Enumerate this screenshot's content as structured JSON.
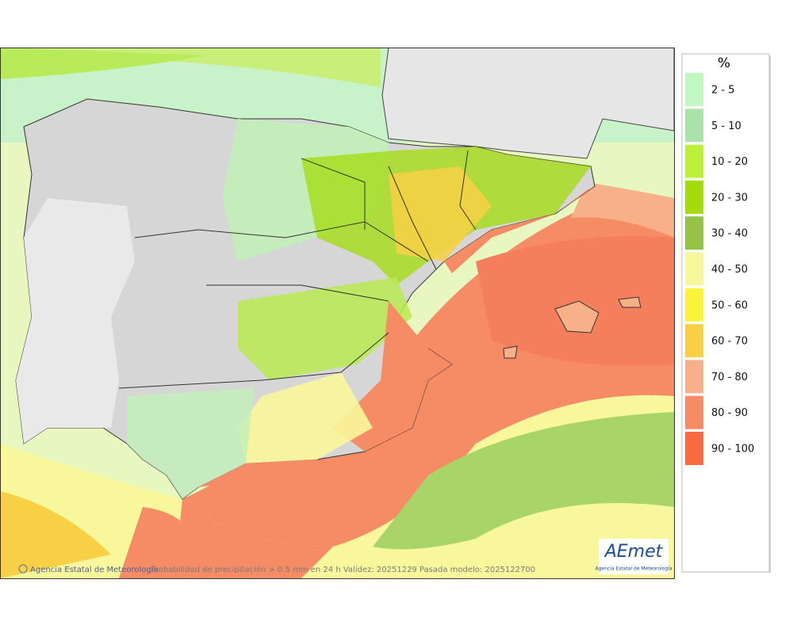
{
  "legend": {
    "title": "%",
    "items": [
      {
        "label": "2 - 5",
        "color": "#c2f7c2"
      },
      {
        "label": "5 - 10",
        "color": "#a9e3a9"
      },
      {
        "label": "10 - 20",
        "color": "#bdf03a"
      },
      {
        "label": "20 - 30",
        "color": "#a3dc0a"
      },
      {
        "label": "30 - 40",
        "color": "#93c448"
      },
      {
        "label": "40 - 50",
        "color": "#f9f79b"
      },
      {
        "label": "50 - 60",
        "color": "#f9f43a"
      },
      {
        "label": "60 - 70",
        "color": "#f8d045"
      },
      {
        "label": "70 - 80",
        "color": "#f8b088"
      },
      {
        "label": "80 - 90",
        "color": "#f68c66"
      },
      {
        "label": "90 - 100",
        "color": "#f96a43"
      }
    ]
  },
  "footer": {
    "credit": "Agencia Estatal de Meteorología",
    "caption": "Probabilidad de precipitación > 0.5 mm en 24 h Validez: 20251229 Pasada modelo: 2025122700"
  },
  "logo": {
    "name": "AEmet",
    "subtitle": "Agencia Estatal de Meteorología"
  }
}
